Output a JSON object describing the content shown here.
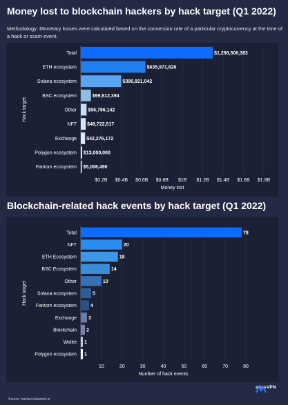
{
  "chart_data": [
    {
      "type": "bar",
      "orientation": "horizontal",
      "title": "Money lost to blockchain hackers by hack target (Q1 2022)",
      "subtitle": "Methodology: Monetary losses were calculated based on the conversion rate of a particular cryptocurrency at the time of a hack or scam event.",
      "xlabel": "Money lost",
      "ylabel": "Hack target",
      "xlim": [
        0,
        1800000000
      ],
      "xticks": [
        200000000,
        400000000,
        600000000,
        800000000,
        1000000000,
        1200000000,
        1400000000,
        1600000000,
        1800000000
      ],
      "xtick_labels": [
        "$0.2B",
        "$0.4B",
        "$0.6B",
        "$0.8B",
        "$1B",
        "$1.2B",
        "$1.4B",
        "$1.6B",
        "$1.8B"
      ],
      "categories": [
        "Total",
        "ETH ecosystem",
        "Solana ecosystem",
        "BSC ecosystem",
        "Other",
        "NFT",
        "Exchange",
        "Polygon ecosystem",
        "Fantom ecosystem"
      ],
      "values": [
        1298506383,
        635971626,
        396921042,
        99812394,
        56796142,
        48722517,
        42276172,
        13000000,
        5006490
      ],
      "value_labels": [
        "$1,298,506,383",
        "$635,971,626",
        "$396,921,042",
        "$99,812,394",
        "$56,796,142",
        "$48,722,517",
        "$42,276,172",
        "$13,000,000",
        "$5,006,490"
      ],
      "colors": [
        "#0d6bff",
        "#1f80f2",
        "#5aa6f5",
        "#8fbde4",
        "#c8dff8",
        "#d3e6fb",
        "#dcebfb",
        "#e4effb",
        "#eaf2fb"
      ],
      "grid": true
    },
    {
      "type": "bar",
      "orientation": "horizontal",
      "title": "Blockchain-related hack events by hack target (Q1 2022)",
      "xlabel": "Number of hack events",
      "ylabel": "Hack target",
      "xlim": [
        0,
        80
      ],
      "xticks": [
        10,
        20,
        30,
        40,
        50,
        60,
        70,
        80
      ],
      "xtick_labels": [
        "10",
        "20",
        "30",
        "40",
        "50",
        "60",
        "70",
        "80"
      ],
      "categories": [
        "Total",
        "NFT",
        "ETH Ecosystem",
        "BSC Ecosystem",
        "Other",
        "Solana ecosystem",
        "Fantom ecosystem",
        "Exchange",
        "Blockchain",
        "Wallet",
        "Polygon ecosystem"
      ],
      "values": [
        78,
        20,
        18,
        14,
        10,
        5,
        4,
        3,
        2,
        1,
        1
      ],
      "value_labels": [
        "78",
        "20",
        "18",
        "14",
        "10",
        "5",
        "4",
        "3",
        "2",
        "1",
        "1"
      ],
      "colors": [
        "#0d6bff",
        "#2a8ef0",
        "#3d97e6",
        "#3a8dd8",
        "#3570b8",
        "#2c5f9e",
        "#27548c",
        "#6d7aa8",
        "#7a82b4",
        "#c9cde6",
        "#ffffff"
      ],
      "grid": true
    }
  ],
  "footer": {
    "source": "Source: hacked.slowmist.io",
    "brand": "atlasVPN"
  }
}
